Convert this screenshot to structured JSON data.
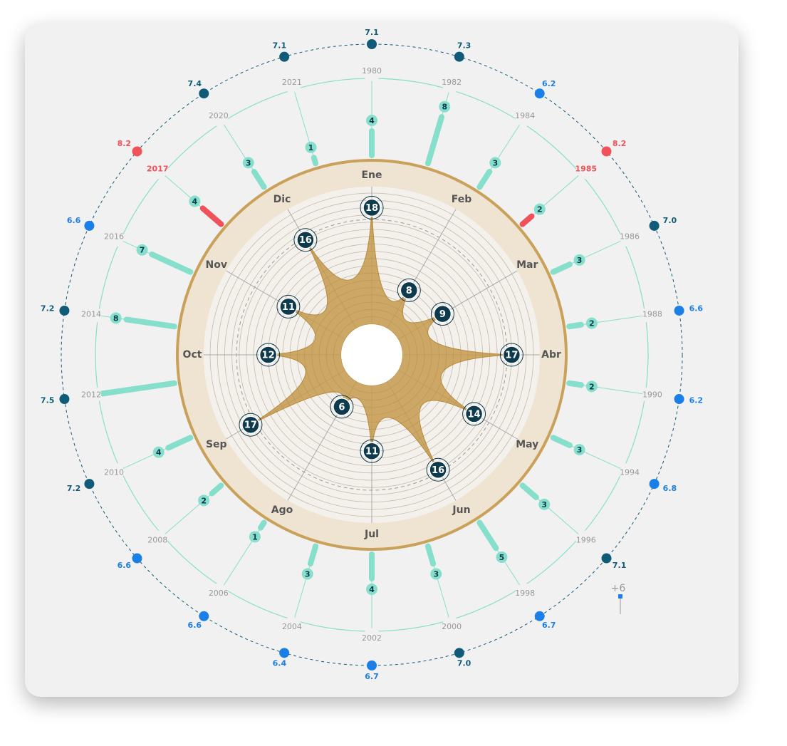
{
  "chart_data": [
    {
      "type": "radar",
      "categories": [
        "Ene",
        "Feb",
        "Mar",
        "Abr",
        "May",
        "Jun",
        "Jul",
        "Ago",
        "Sep",
        "Oct",
        "Nov",
        "Dic"
      ],
      "values": [
        18,
        8,
        9,
        17,
        14,
        16,
        11,
        6,
        17,
        12,
        11,
        16
      ],
      "color": "#c49a4e"
    },
    {
      "type": "radial_bar",
      "categories": [
        "1980",
        "1982",
        "1984",
        "1985",
        "1986",
        "1988",
        "1990",
        "1994",
        "1996",
        "1998",
        "2000",
        "2002",
        "2004",
        "2006",
        "2008",
        "2010",
        "2012",
        "2014",
        "2016",
        "2017",
        "2020",
        "2021"
      ],
      "values": [
        4,
        8,
        3,
        2,
        3,
        2,
        2,
        3,
        3,
        5,
        3,
        4,
        3,
        1,
        2,
        4,
        12,
        8,
        7,
        4,
        3,
        1
      ],
      "color": "#86dfcb",
      "colors": [
        "#86dfcb",
        "#86dfcb",
        "#86dfcb",
        "#f0525a",
        "#86dfcb",
        "#86dfcb",
        "#86dfcb",
        "#86dfcb",
        "#86dfcb",
        "#86dfcb",
        "#86dfcb",
        "#86dfcb",
        "#86dfcb",
        "#86dfcb",
        "#86dfcb",
        "#86dfcb",
        "#86dfcb",
        "#86dfcb",
        "#86dfcb",
        "#f0525a",
        "#86dfcb",
        "#86dfcb"
      ]
    },
    {
      "type": "radial_dot",
      "values": [
        7.1,
        7.3,
        6.2,
        8.2,
        7.0,
        6.6,
        6.2,
        6.8,
        7.1,
        6.7,
        7.0,
        6.7,
        6.4,
        6.6,
        6.6,
        7.2,
        7.5,
        7.2,
        6.6,
        8.2,
        7.4,
        7.1
      ],
      "value_labels": [
        "7.1",
        "7.3",
        "6.2",
        "8.2",
        "7.0",
        "6.6",
        "6.2",
        "6.8",
        "7.1",
        "6.7",
        "7.0",
        "6.7",
        "6.4",
        "6.6",
        "6.6",
        "7.2",
        "7.5",
        "7.2",
        "6.6",
        "8.2",
        "7.4",
        "7.1"
      ],
      "colors": [
        "#0f5b78",
        "#0f5b78",
        "#1a7fe6",
        "#f0525a",
        "#0f5b78",
        "#1a7fe6",
        "#1a7fe6",
        "#1a7fe6",
        "#0f5b78",
        "#1a7fe6",
        "#0f5b78",
        "#1a7fe6",
        "#1a7fe6",
        "#1a7fe6",
        "#1a7fe6",
        "#0f5b78",
        "#0f5b78",
        "#0f5b78",
        "#1a7fe6",
        "#f0525a",
        "#0f5b78",
        "#0f5b78"
      ],
      "legend_label": "+6"
    }
  ]
}
